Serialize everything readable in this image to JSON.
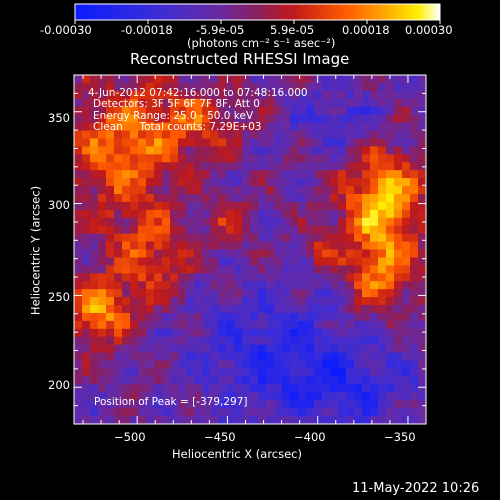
{
  "colorbar": {
    "ticks": [
      "-0.00030",
      "-0.00018",
      "-5.9e-05",
      "5.9e-05",
      "0.00018",
      "0.00030"
    ],
    "unit": "(photons cm⁻² s⁻¹ asec⁻²)",
    "range": [
      -0.0003,
      0.0003
    ]
  },
  "title": "Reconstructed RHESSI Image",
  "annotations": {
    "time": "4-Jun-2012 07:42:16.000 to 07:48:16.000",
    "detectors": "Detectors: 3F 5F 6F 7F 8F, Att 0",
    "energy": "Energy Range: 25.0 - 50.0 keV",
    "clean": "Clean     Total counts: 7.29E+03",
    "peak": "Position of Peak = [-379,297]"
  },
  "footer": {
    "timestamp": "11-May-2022 10:26"
  },
  "chart_data": {
    "type": "heatmap",
    "title": "Reconstructed RHESSI Image",
    "xlabel": "Heliocentric X (arcsec)",
    "ylabel": "Heliocentric Y (arcsec)",
    "xlim": [
      -535,
      -340
    ],
    "ylim": [
      180,
      370
    ],
    "xticks": [
      -500,
      -450,
      -400,
      -350
    ],
    "yticks": [
      200,
      250,
      300,
      350
    ],
    "xtick_labels": [
      "−500",
      "−450",
      "−400",
      "−350"
    ],
    "ytick_labels": [
      "200",
      "250",
      "300",
      "350"
    ],
    "colorscale": "rainbow + white (blue-purple-red-orange-yellow-white)",
    "peak_position": [
      -379,
      297
    ],
    "grid": false
  }
}
